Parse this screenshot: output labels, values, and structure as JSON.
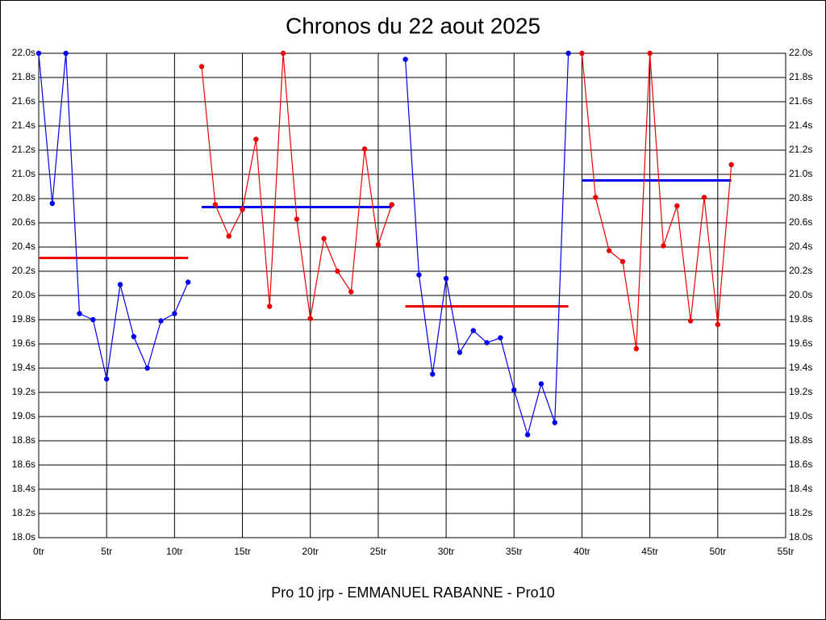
{
  "chart_data": {
    "type": "line",
    "title": "Chronos du 22 aout 2025",
    "x_label": "Pro 10 jrp - EMMANUEL RABANNE - Pro10",
    "xlim": [
      0,
      55
    ],
    "xticks": [
      {
        "value": 0,
        "label": "0tr"
      },
      {
        "value": 5,
        "label": "5tr"
      },
      {
        "value": 10,
        "label": "10tr"
      },
      {
        "value": 15,
        "label": "15tr"
      },
      {
        "value": 20,
        "label": "20tr"
      },
      {
        "value": 25,
        "label": "25tr"
      },
      {
        "value": 30,
        "label": "30tr"
      },
      {
        "value": 35,
        "label": "35tr"
      },
      {
        "value": 40,
        "label": "40tr"
      },
      {
        "value": 45,
        "label": "45tr"
      },
      {
        "value": 50,
        "label": "50tr"
      },
      {
        "value": 55,
        "label": "55tr"
      }
    ],
    "ylim": [
      18.0,
      22.0
    ],
    "yticks": [
      {
        "value": 18.0,
        "label": "18.0s"
      },
      {
        "value": 18.2,
        "label": "18.2s"
      },
      {
        "value": 18.4,
        "label": "18.4s"
      },
      {
        "value": 18.6,
        "label": "18.6s"
      },
      {
        "value": 18.8,
        "label": "18.8s"
      },
      {
        "value": 19.0,
        "label": "19.0s"
      },
      {
        "value": 19.2,
        "label": "19.2s"
      },
      {
        "value": 19.4,
        "label": "19.4s"
      },
      {
        "value": 19.6,
        "label": "19.6s"
      },
      {
        "value": 19.8,
        "label": "19.8s"
      },
      {
        "value": 20.0,
        "label": "20.0s"
      },
      {
        "value": 20.2,
        "label": "20.2s"
      },
      {
        "value": 20.4,
        "label": "20.4s"
      },
      {
        "value": 20.6,
        "label": "20.6s"
      },
      {
        "value": 20.8,
        "label": "20.8s"
      },
      {
        "value": 21.0,
        "label": "21.0s"
      },
      {
        "value": 21.2,
        "label": "21.2s"
      },
      {
        "value": 21.4,
        "label": "21.4s"
      },
      {
        "value": 21.6,
        "label": "21.6s"
      },
      {
        "value": 21.8,
        "label": "21.8s"
      },
      {
        "value": 22.0,
        "label": "22.0s"
      }
    ],
    "grid": true,
    "series": [
      {
        "color": "#0000ee",
        "x": [
          0,
          1,
          2,
          3,
          4,
          5,
          6,
          7,
          8,
          9,
          10,
          11
        ],
        "values": [
          22.0,
          20.76,
          22.0,
          19.85,
          19.8,
          19.31,
          20.09,
          19.66,
          19.4,
          19.79,
          19.85,
          20.11
        ]
      },
      {
        "color": "#ee0000",
        "x": [
          12,
          13,
          14,
          15,
          16,
          17,
          18,
          19,
          20,
          21,
          22,
          23,
          24,
          25,
          26
        ],
        "values": [
          21.89,
          20.75,
          20.49,
          20.71,
          21.29,
          19.91,
          22.0,
          20.63,
          19.81,
          20.47,
          20.2,
          20.03,
          21.21,
          20.42,
          20.75
        ]
      },
      {
        "color": "#0000ee",
        "x": [
          27,
          28,
          29,
          30,
          31,
          32,
          33,
          34,
          35,
          36,
          37,
          38,
          39
        ],
        "values": [
          21.95,
          20.17,
          19.35,
          20.14,
          19.53,
          19.71,
          19.61,
          19.65,
          19.22,
          18.85,
          19.27,
          18.95,
          22.0
        ]
      },
      {
        "color": "#ee0000",
        "x": [
          40,
          41,
          42,
          43,
          44,
          45,
          46,
          47,
          48,
          49,
          50,
          51
        ],
        "values": [
          22.0,
          20.81,
          20.37,
          20.28,
          19.56,
          22.0,
          20.41,
          20.74,
          19.79,
          20.81,
          19.76,
          21.08
        ]
      }
    ],
    "averages": [
      {
        "color": "#ee0000",
        "x": [
          0,
          11
        ],
        "value": 20.31
      },
      {
        "color": "#0000ee",
        "x": [
          12,
          26
        ],
        "value": 20.73
      },
      {
        "color": "#ee0000",
        "x": [
          27,
          39
        ],
        "value": 19.91
      },
      {
        "color": "#0000ee",
        "x": [
          40,
          51
        ],
        "value": 20.95
      }
    ]
  }
}
